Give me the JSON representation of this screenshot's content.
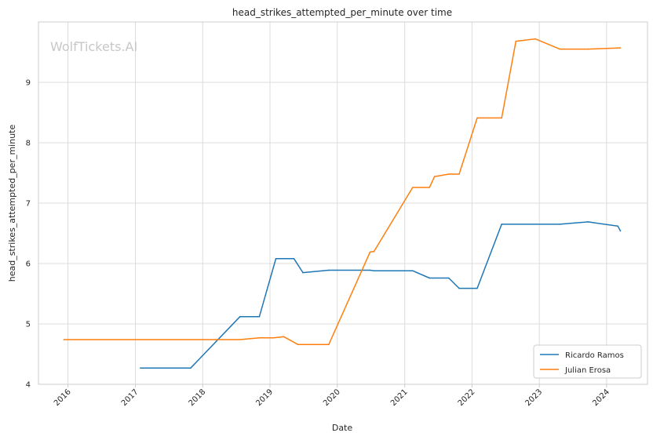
{
  "chart_data": {
    "type": "line",
    "title": "head_strikes_attempted_per_minute over time",
    "xlabel": "Date",
    "ylabel": "head_strikes_attempted_per_minute",
    "watermark": "WolfTickets.AI",
    "xlim": [
      "2015-07-25",
      "2024-08-10"
    ],
    "ylim": [
      4,
      10
    ],
    "x_ticks": [
      "2016",
      "2017",
      "2018",
      "2019",
      "2020",
      "2021",
      "2022",
      "2023",
      "2024"
    ],
    "y_ticks": [
      4,
      5,
      6,
      7,
      8,
      9
    ],
    "grid": true,
    "legend_position": "bottom-right",
    "series": [
      {
        "name": "Ricardo Ramos",
        "color": "#1f77b4",
        "points": [
          {
            "x": "2017-01-28",
            "y": 4.27
          },
          {
            "x": "2017-10-28",
            "y": 4.27
          },
          {
            "x": "2018-07-22",
            "y": 5.12
          },
          {
            "x": "2018-11-04",
            "y": 5.12
          },
          {
            "x": "2019-02-02",
            "y": 6.08
          },
          {
            "x": "2019-05-11",
            "y": 6.08
          },
          {
            "x": "2019-06-29",
            "y": 5.85
          },
          {
            "x": "2019-11-16",
            "y": 5.89
          },
          {
            "x": "2020-06-27",
            "y": 5.89
          },
          {
            "x": "2020-07-18",
            "y": 5.88
          },
          {
            "x": "2021-02-13",
            "y": 5.88
          },
          {
            "x": "2021-05-15",
            "y": 5.76
          },
          {
            "x": "2021-08-28",
            "y": 5.76
          },
          {
            "x": "2021-10-23",
            "y": 5.59
          },
          {
            "x": "2022-01-29",
            "y": 5.59
          },
          {
            "x": "2022-06-11",
            "y": 6.65
          },
          {
            "x": "2023-04-22",
            "y": 6.65
          },
          {
            "x": "2023-09-23",
            "y": 6.69
          },
          {
            "x": "2024-03-02",
            "y": 6.62
          },
          {
            "x": "2024-03-16",
            "y": 6.54
          }
        ]
      },
      {
        "name": "Julian Erosa",
        "color": "#ff7f0e",
        "points": [
          {
            "x": "2015-12-10",
            "y": 4.74
          },
          {
            "x": "2018-07-22",
            "y": 4.74
          },
          {
            "x": "2018-11-04",
            "y": 4.77
          },
          {
            "x": "2019-01-19",
            "y": 4.77
          },
          {
            "x": "2019-03-16",
            "y": 4.79
          },
          {
            "x": "2019-06-01",
            "y": 4.66
          },
          {
            "x": "2019-11-16",
            "y": 4.66
          },
          {
            "x": "2020-06-27",
            "y": 6.19
          },
          {
            "x": "2020-07-18",
            "y": 6.2
          },
          {
            "x": "2021-02-13",
            "y": 7.26
          },
          {
            "x": "2021-05-15",
            "y": 7.26
          },
          {
            "x": "2021-06-12",
            "y": 7.44
          },
          {
            "x": "2021-08-28",
            "y": 7.48
          },
          {
            "x": "2021-10-23",
            "y": 7.48
          },
          {
            "x": "2022-01-29",
            "y": 8.41
          },
          {
            "x": "2022-06-11",
            "y": 8.41
          },
          {
            "x": "2022-08-27",
            "y": 9.68
          },
          {
            "x": "2022-12-10",
            "y": 9.72
          },
          {
            "x": "2023-04-22",
            "y": 9.55
          },
          {
            "x": "2023-09-23",
            "y": 9.55
          },
          {
            "x": "2024-03-16",
            "y": 9.57
          }
        ]
      }
    ]
  }
}
